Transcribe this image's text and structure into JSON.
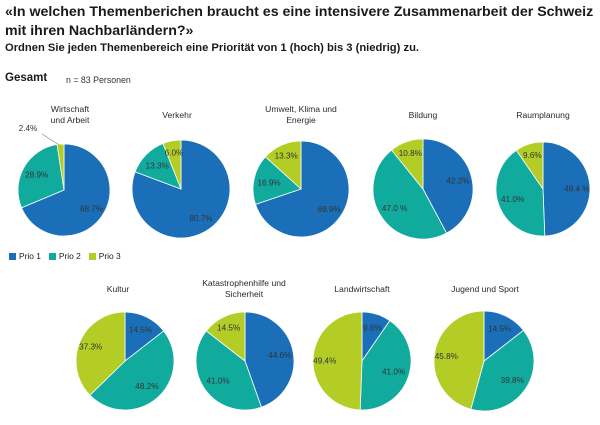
{
  "title": "«In welchen Themenberichen braucht es eine intensivere Zusammenarbeit der Schweiz mit ihren Nachbarländern?»",
  "subtitle": "Ordnen Sie jeden Themenbereich eine Priorität von 1 (hoch) bis 3 (niedrig) zu.",
  "group_label": "Gesamt",
  "sample_size": "n = 83 Personen",
  "colors": {
    "prio1": "#1b6fb8",
    "prio2": "#11ab9d",
    "prio3": "#b3cd26"
  },
  "legend": [
    "Prio 1",
    "Prio 2",
    "Prio 3"
  ],
  "chart_data": [
    {
      "type": "pie",
      "title_lines": [
        "Wirtschaft",
        "und Arbeit"
      ],
      "labels": [
        "68.7%",
        "28.9%",
        "2.4%"
      ],
      "values": [
        68.7,
        28.9,
        2.4
      ]
    },
    {
      "type": "pie",
      "title_lines": [
        "Verkehr"
      ],
      "labels": [
        "80.7%",
        "13.3%",
        "6.0%"
      ],
      "values": [
        80.7,
        13.3,
        6.0
      ]
    },
    {
      "type": "pie",
      "title_lines": [
        "Umwelt, Klima und",
        "Energie"
      ],
      "labels": [
        "69.9%",
        "16.9%",
        "13.3%"
      ],
      "values": [
        69.9,
        16.9,
        13.3
      ]
    },
    {
      "type": "pie",
      "title_lines": [
        "Bildung"
      ],
      "labels": [
        "42.2%",
        "47.0 %",
        "10.8%"
      ],
      "values": [
        42.2,
        47.0,
        10.8
      ]
    },
    {
      "type": "pie",
      "title_lines": [
        "Raumplanung"
      ],
      "labels": [
        "49.4 %",
        "41.0%",
        "9.6%"
      ],
      "values": [
        49.4,
        41.0,
        9.6
      ]
    },
    {
      "type": "pie",
      "title_lines": [
        "Kultur"
      ],
      "labels": [
        "14.5%",
        "48.2%",
        "37.3%"
      ],
      "values": [
        14.5,
        48.2,
        37.3
      ]
    },
    {
      "type": "pie",
      "title_lines": [
        "Katastrophenhilfe und",
        "Sicherheit"
      ],
      "labels": [
        "44.6%",
        "41.0%",
        "14.5%"
      ],
      "values": [
        44.6,
        41.0,
        14.5
      ]
    },
    {
      "type": "pie",
      "title_lines": [
        "Landwirtschaft"
      ],
      "labels": [
        "9.6%",
        "41.0%",
        "49.4%"
      ],
      "values": [
        9.6,
        41.0,
        49.4
      ]
    },
    {
      "type": "pie",
      "title_lines": [
        "Jugend und Sport"
      ],
      "labels": [
        "14.5%",
        "39.8%",
        "45.8%"
      ],
      "values": [
        14.5,
        39.8,
        45.8
      ]
    }
  ]
}
